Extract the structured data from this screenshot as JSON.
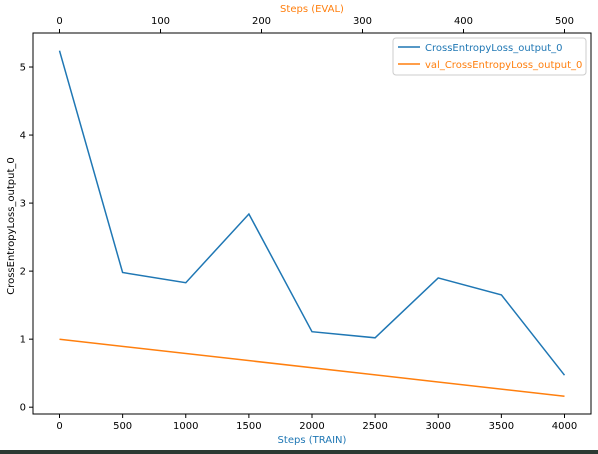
{
  "chart_data": {
    "type": "line",
    "xlabel_bottom": "Steps (TRAIN)",
    "xlabel_top": "Steps (EVAL)",
    "ylabel": "CrossEntropyLoss_output_0",
    "xlim_bottom": [
      -210,
      4210
    ],
    "xlim_top": [
      -26.25,
      526.25
    ],
    "ylim": [
      -0.1,
      5.5
    ],
    "xticks_bottom": [
      0,
      500,
      1000,
      1500,
      2000,
      2500,
      3000,
      3500,
      4000
    ],
    "xticks_top": [
      0,
      100,
      200,
      300,
      400,
      500
    ],
    "yticks": [
      0,
      1,
      2,
      3,
      4,
      5
    ],
    "legend_position": "top-right",
    "grid": false,
    "colors": {
      "train": "#1f77b4",
      "eval": "#ff7f0e",
      "bottom_axis_label": "#1f77b4",
      "top_axis_label": "#ff7f0e"
    },
    "series": [
      {
        "name": "CrossEntropyLoss_output_0",
        "axis": "bottom",
        "color": "#1f77b4",
        "x": [
          0,
          500,
          1000,
          1500,
          2000,
          2500,
          3000,
          3500,
          4000
        ],
        "y": [
          5.24,
          1.98,
          1.83,
          2.84,
          1.11,
          1.02,
          1.9,
          1.65,
          0.47
        ]
      },
      {
        "name": "val_CrossEntropyLoss_output_0",
        "axis": "top",
        "color": "#ff7f0e",
        "x": [
          0,
          500
        ],
        "y": [
          1.0,
          0.16
        ]
      }
    ]
  }
}
